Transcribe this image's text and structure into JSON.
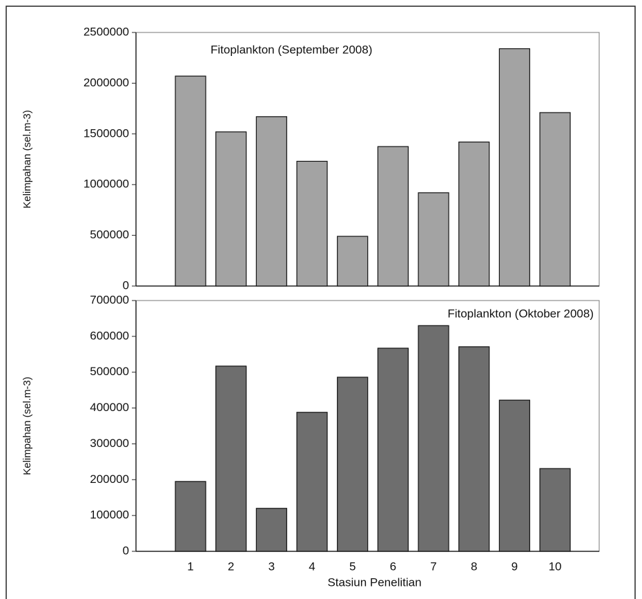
{
  "chart_data": [
    {
      "type": "bar",
      "title": "Fitoplankton (September 2008)",
      "ylabel": "Kelimpahan (sel.m-3)",
      "categories": [
        null,
        null,
        null,
        null,
        null,
        null,
        null,
        null,
        null,
        null
      ],
      "values": [
        2070000,
        1520000,
        1670000,
        1230000,
        490000,
        1375000,
        920000,
        1420000,
        2340000,
        1710000
      ],
      "color": "#a3a3a3",
      "ylim": [
        0,
        2500000
      ],
      "yticks": [
        0,
        500000,
        1000000,
        1500000,
        2000000,
        2500000
      ]
    },
    {
      "type": "bar",
      "title": "Fitoplankton (Oktober 2008)",
      "ylabel": "Kelimpahan (sel.m-3)",
      "xlabel": "Stasiun Penelitian",
      "categories": [
        "1",
        "2",
        "3",
        "4",
        "5",
        "6",
        "7",
        "8",
        "9",
        "10"
      ],
      "values": [
        195000,
        517000,
        120000,
        388000,
        486000,
        567000,
        630000,
        571000,
        422000,
        231000
      ],
      "color": "#6e6e6e",
      "ylim": [
        0,
        700000
      ],
      "yticks": [
        0,
        100000,
        200000,
        300000,
        400000,
        500000,
        600000,
        700000
      ]
    }
  ]
}
